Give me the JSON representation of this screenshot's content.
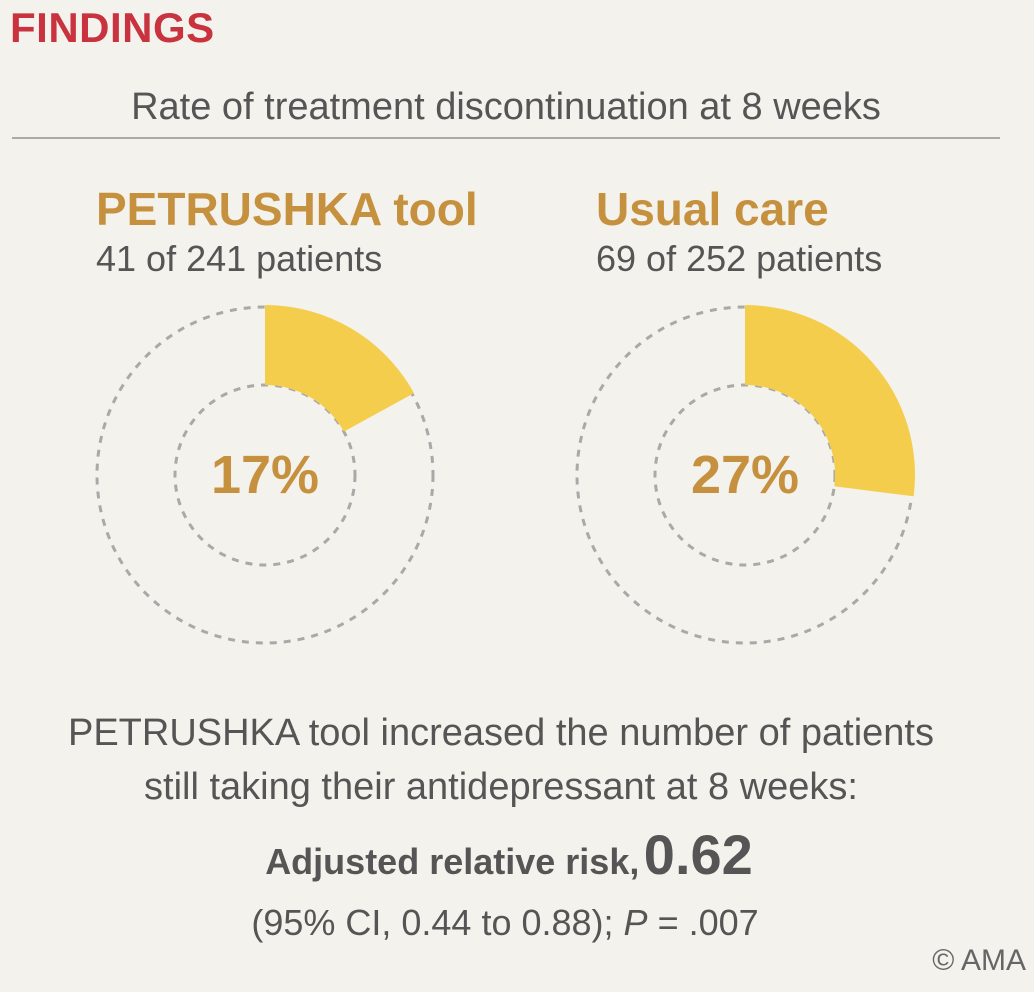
{
  "header": {
    "label": "FINDINGS",
    "subtitle": "Rate of treatment discontinuation at 8 weeks"
  },
  "chart_data": {
    "type": "pie",
    "title": "Rate of treatment discontinuation at 8 weeks",
    "colors": {
      "slice": "#f5cd4d",
      "ring": "#a9a9a9",
      "value_text": "#c6913f"
    },
    "groups": [
      {
        "name": "PETRUSHKA tool",
        "count_text": "41 of 241 patients",
        "discontinued": 41,
        "total": 241,
        "percent": 17,
        "percent_label": "17%"
      },
      {
        "name": "Usual care",
        "count_text": "69 of 252 patients",
        "discontinued": 69,
        "total": 252,
        "percent": 27,
        "percent_label": "27%"
      }
    ]
  },
  "conclusion": {
    "line1": "PETRUSHKA tool increased the number of patients",
    "line2": "still taking their antidepressant at 8 weeks:",
    "rr_label": "Adjusted relative risk,",
    "rr_value": "0.62",
    "ci_text": "(95% CI, 0.44 to 0.88); ",
    "p_symbol": "P",
    "p_text": " = .007"
  },
  "footer": {
    "copyright": "© AMA"
  }
}
